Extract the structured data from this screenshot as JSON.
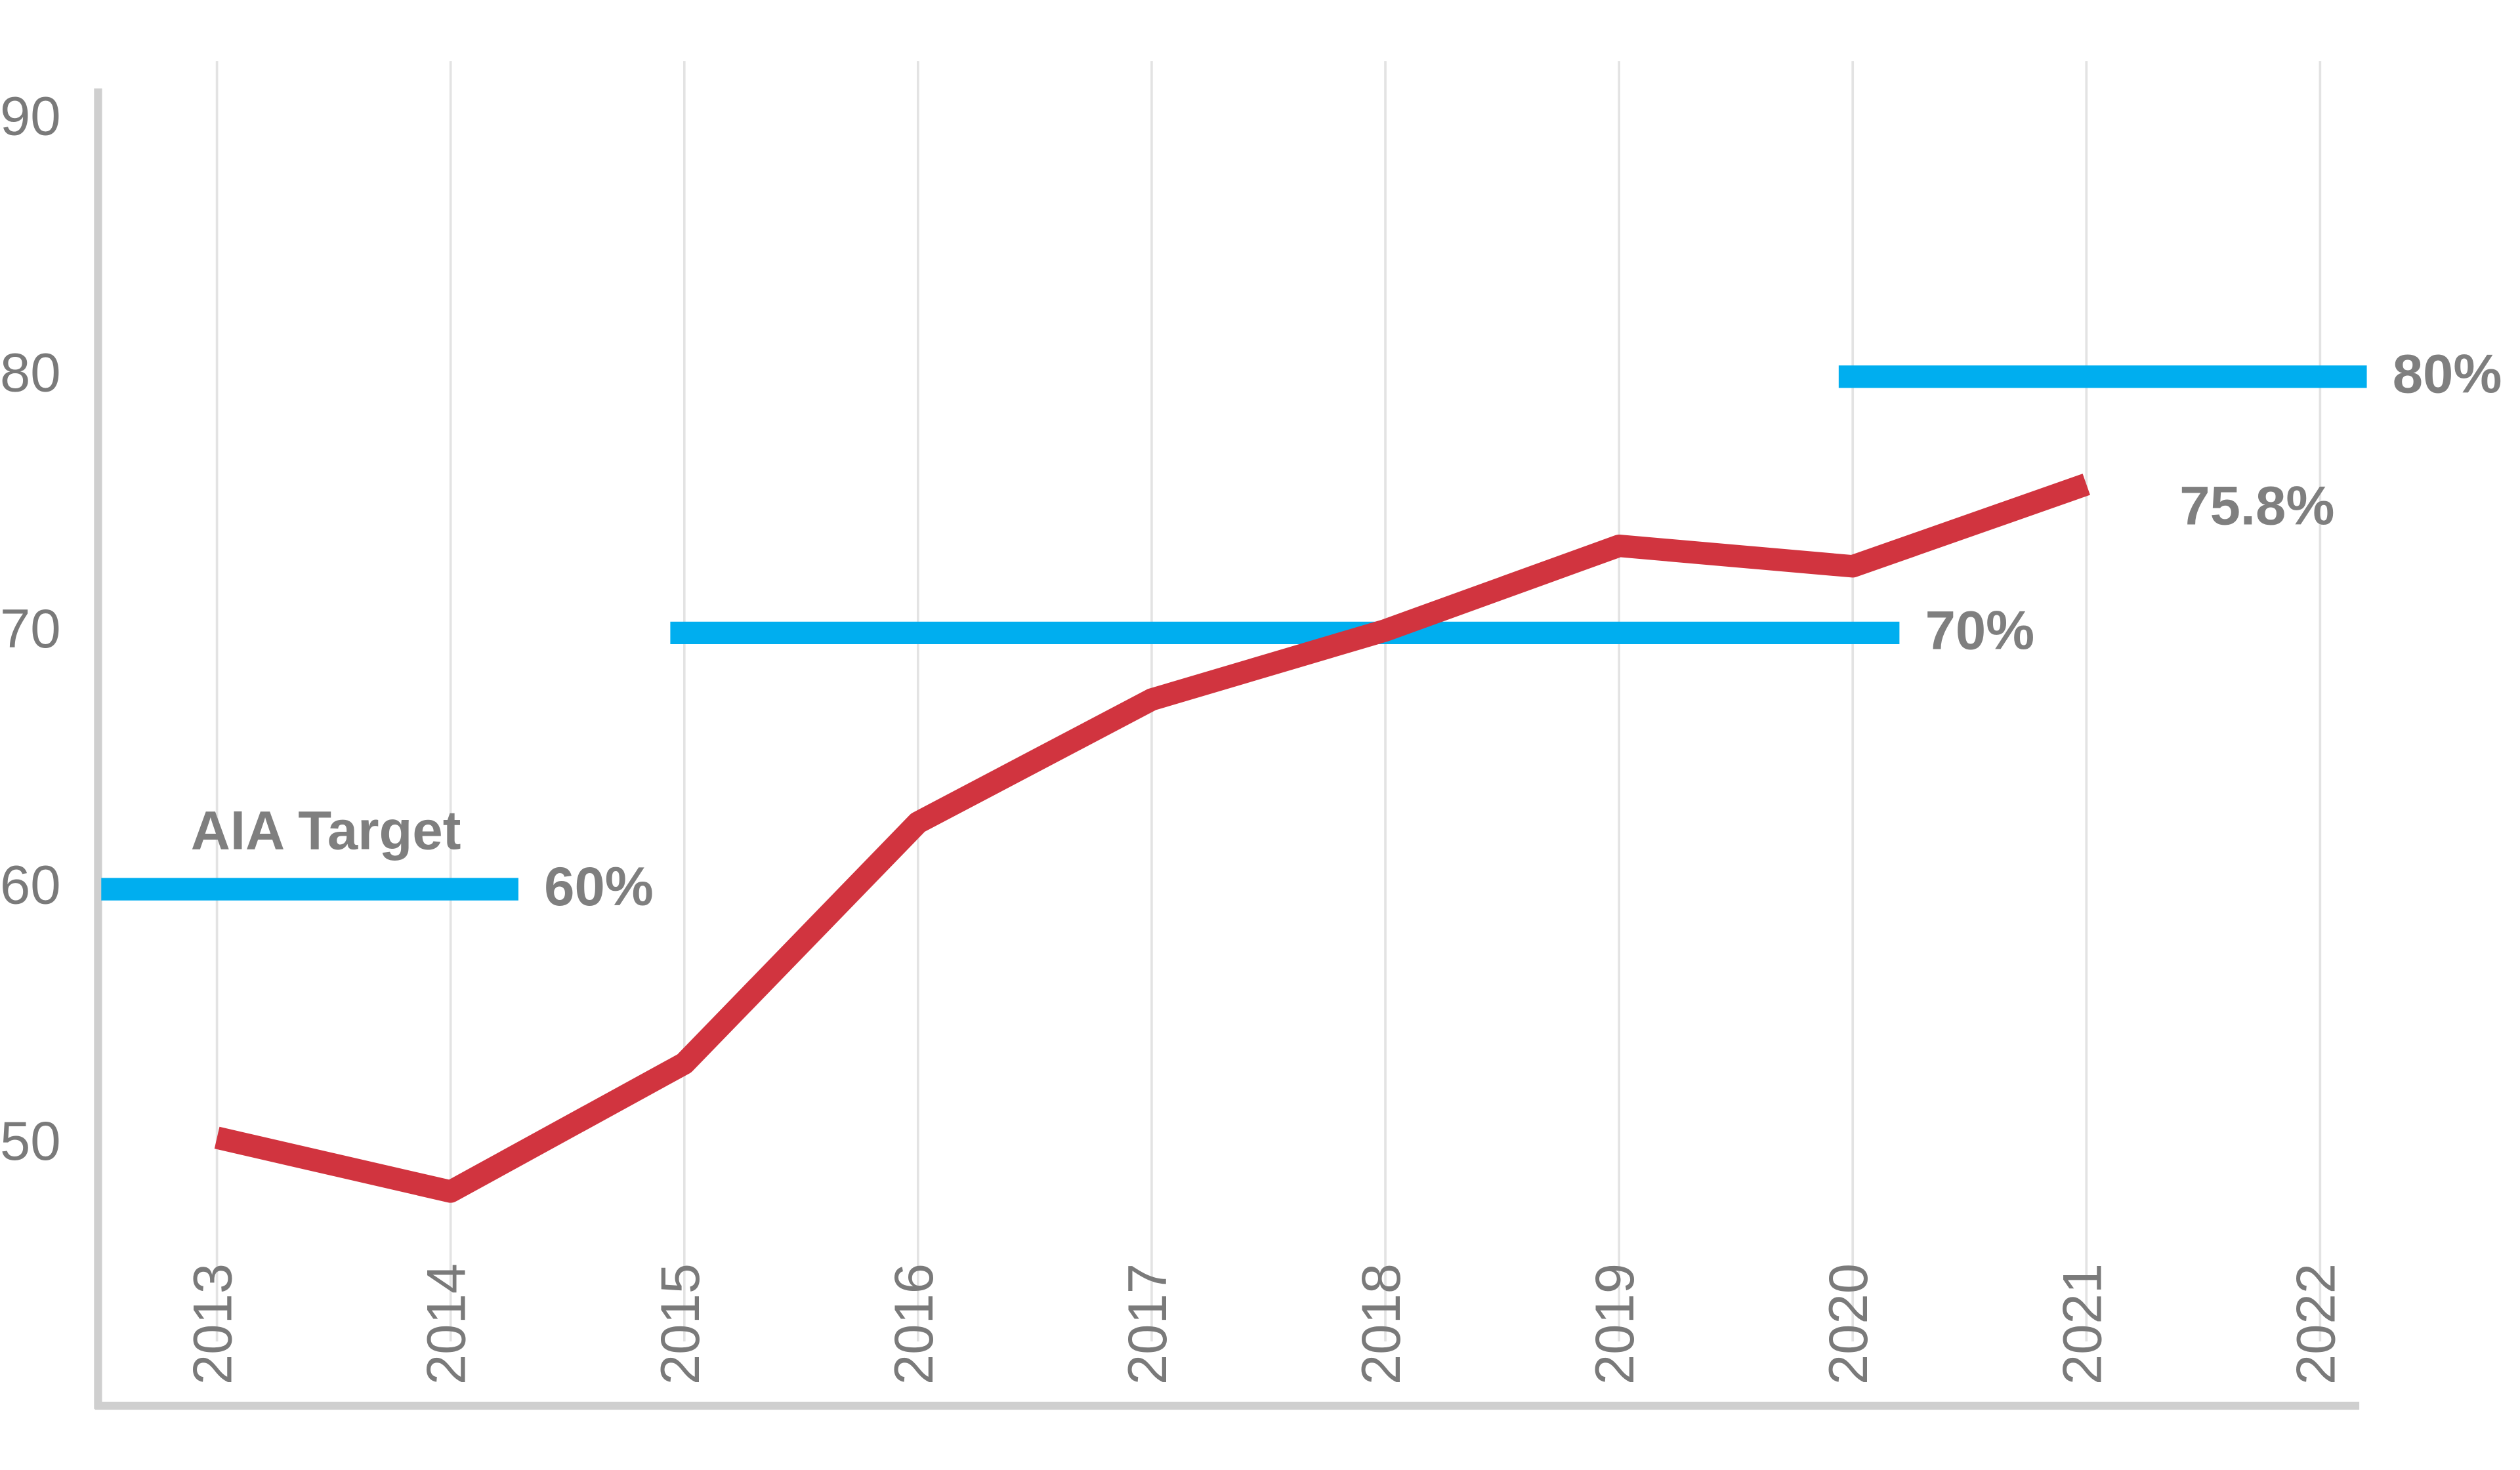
{
  "chart_data": {
    "type": "line",
    "categories": [
      "2013",
      "2014",
      "2015",
      "2016",
      "2017",
      "2018",
      "2019",
      "2020",
      "2021",
      "2022"
    ],
    "values": [
      50.3,
      48.2,
      53.2,
      62.6,
      67.4,
      70.1,
      73.4,
      72.6,
      75.8,
      null
    ],
    "value_labels": [
      null,
      null,
      null,
      null,
      null,
      null,
      null,
      null,
      "75.8%",
      null
    ],
    "color": "#d1343f",
    "ylim": [
      40,
      91
    ],
    "yticks": [
      50,
      60,
      70,
      80,
      90
    ],
    "target_name": "AIA Target",
    "target_color": "#00aeef",
    "targets": [
      {
        "value": 60,
        "label": "60%",
        "from": "2013",
        "to": "2014"
      },
      {
        "value": 70,
        "label": "70%",
        "from": "2015",
        "to": "2020"
      },
      {
        "value": 80,
        "label": "80%",
        "from": "2020",
        "to": "2022"
      }
    ]
  }
}
